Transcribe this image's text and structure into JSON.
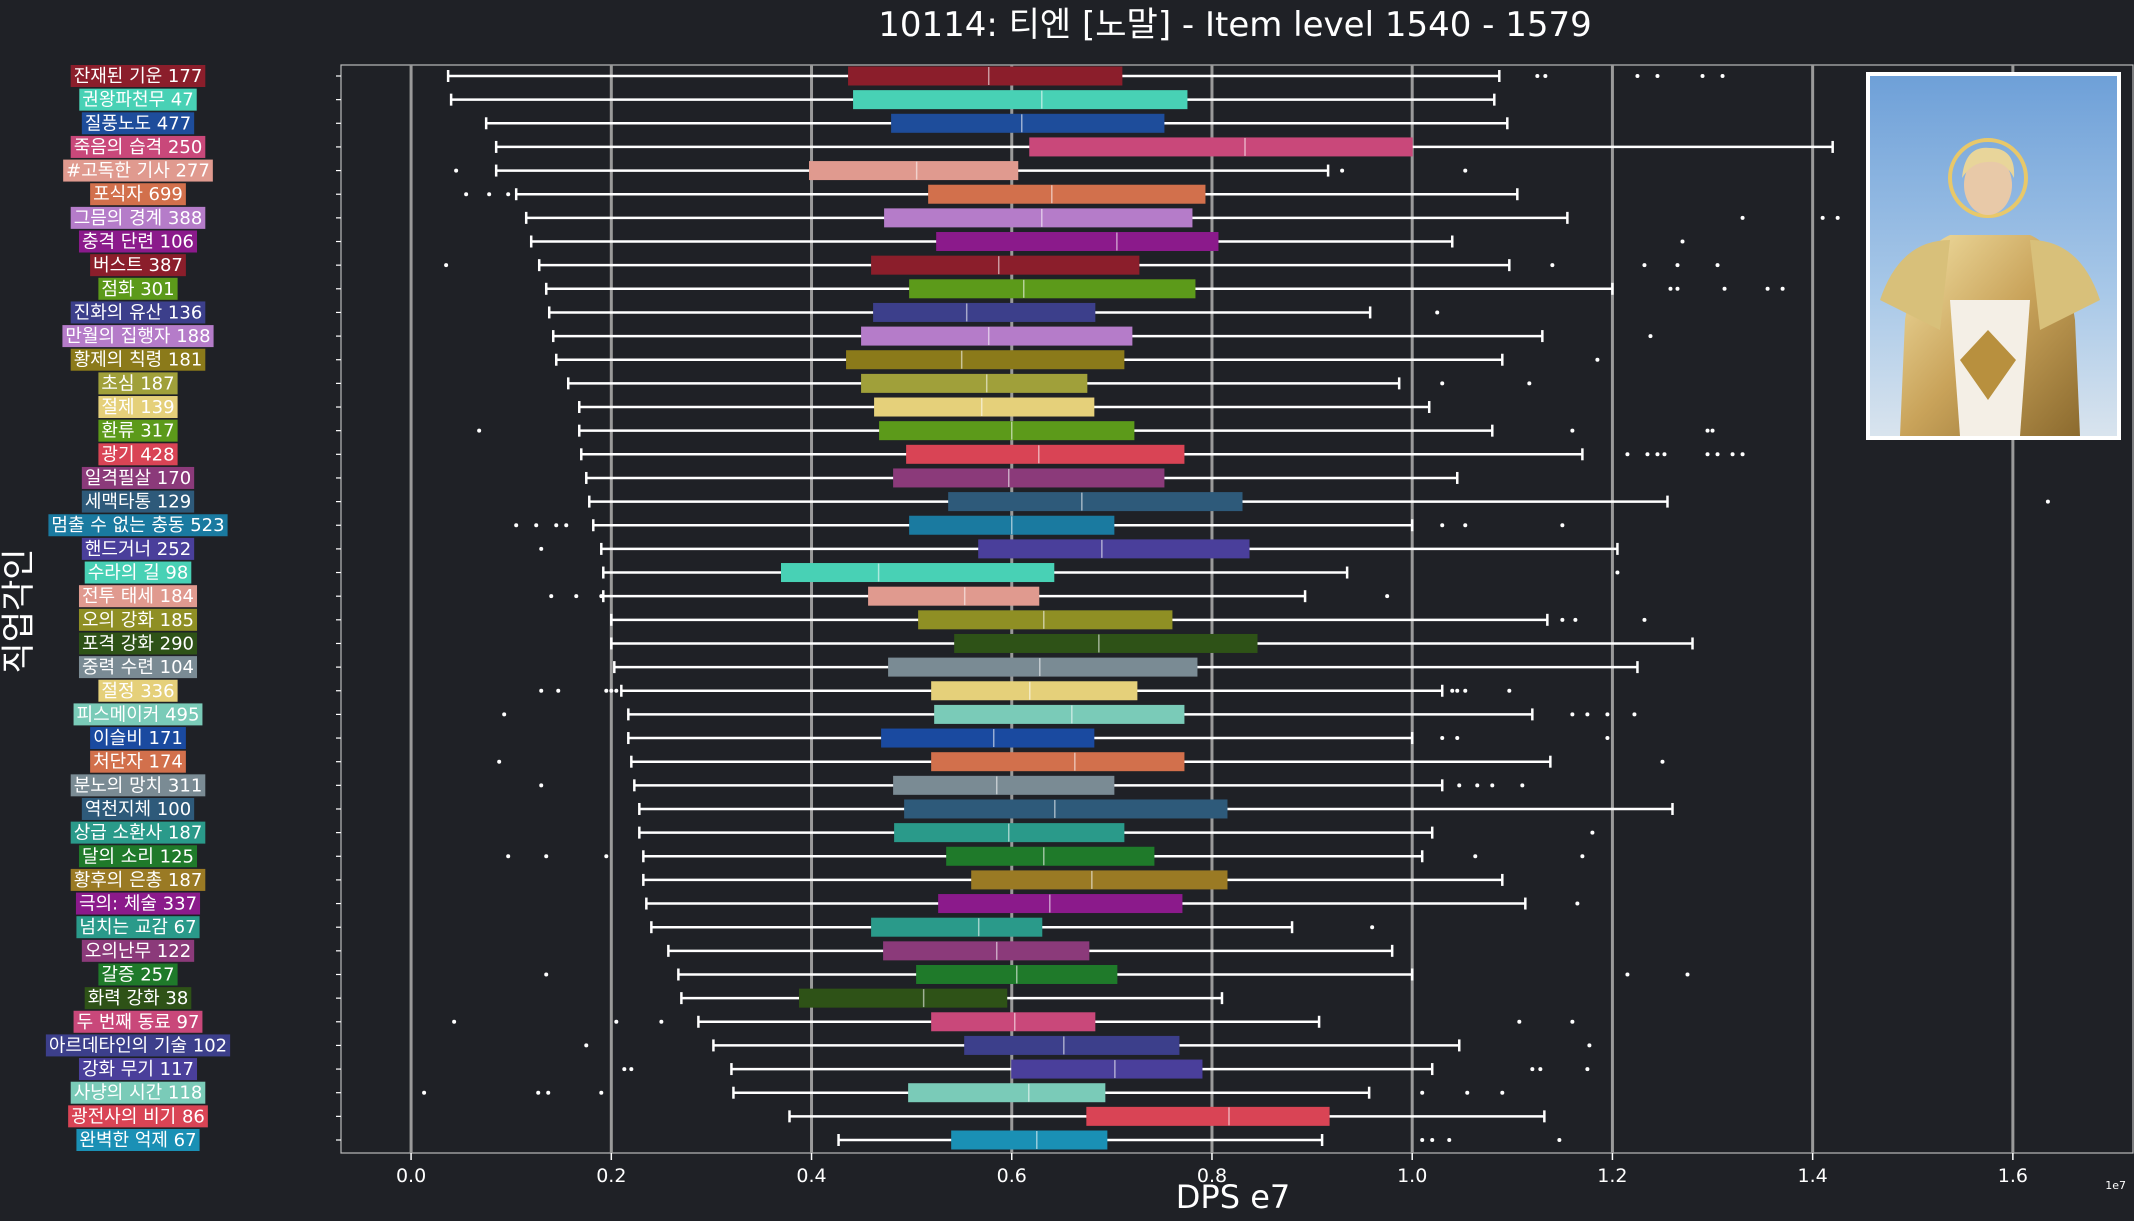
{
  "chart_data": {
    "type": "box",
    "orientation": "horizontal",
    "title": "10114: 티엔 [노말] - Item level 1540 - 1579",
    "xlabel": "DPS e7",
    "ylabel": "직업각인",
    "x_offset_text": "1e7",
    "xlim": [
      -0.07,
      1.72
    ],
    "xticks": [
      "0.0",
      "0.2",
      "0.4",
      "0.6",
      "0.8",
      "1.0",
      "1.2",
      "1.4",
      "1.6"
    ],
    "xtick_values": [
      0.0,
      0.2,
      0.4,
      0.6,
      0.8,
      1.0,
      1.2,
      1.4,
      1.6
    ],
    "grid": "vertical",
    "series": [
      {
        "label": "잔재된 기운 177",
        "color": "#8b1e2b",
        "stats": [
          0.037,
          0.437,
          0.577,
          0.71,
          1.087
        ],
        "outliers": [
          1.125,
          1.133,
          1.225,
          1.245,
          1.29,
          1.31
        ]
      },
      {
        "label": "권왕파천무 47",
        "color": "#48d1b5",
        "stats": [
          0.04,
          0.442,
          0.63,
          0.775,
          1.082
        ],
        "outliers": []
      },
      {
        "label": "질풍노도 477",
        "color": "#1e4d9b",
        "stats": [
          0.075,
          0.48,
          0.61,
          0.752,
          1.095
        ],
        "outliers": []
      },
      {
        "label": "죽음의 습격 250",
        "color": "#c9487a",
        "stats": [
          0.085,
          0.618,
          0.833,
          1.0,
          1.42
        ],
        "outliers": []
      },
      {
        "label": "#고독한 기사 277",
        "color": "#e09a8f",
        "stats": [
          0.085,
          0.398,
          0.505,
          0.606,
          0.916
        ],
        "outliers": [
          0.045,
          0.93,
          1.053
        ]
      },
      {
        "label": "포식자 699",
        "color": "#d2704c",
        "stats": [
          0.105,
          0.517,
          0.64,
          0.793,
          1.105
        ],
        "outliers": [
          0.055,
          0.078,
          0.097
        ]
      },
      {
        "label": "그믐의 경계 388",
        "color": "#b57cc9",
        "stats": [
          0.115,
          0.473,
          0.63,
          0.78,
          1.155
        ],
        "outliers": [
          1.33,
          1.41,
          1.425
        ]
      },
      {
        "label": "충격 단련 106",
        "color": "#8b1a8b",
        "stats": [
          0.12,
          0.525,
          0.705,
          0.806,
          1.04
        ],
        "outliers": [
          1.27
        ]
      },
      {
        "label": "버스트 387",
        "color": "#8b1e2b",
        "stats": [
          0.128,
          0.46,
          0.587,
          0.727,
          1.097
        ],
        "outliers": [
          0.035,
          1.14,
          1.232,
          1.265,
          1.305
        ]
      },
      {
        "label": "점화 301",
        "color": "#5c9a1a",
        "stats": [
          0.135,
          0.498,
          0.612,
          0.783,
          1.2
        ],
        "outliers": [
          1.258,
          1.265,
          1.312,
          1.355,
          1.37
        ]
      },
      {
        "label": "진화의 유산 136",
        "color": "#3c3f8b",
        "stats": [
          0.138,
          0.462,
          0.555,
          0.683,
          0.958
        ],
        "outliers": [
          1.025
        ]
      },
      {
        "label": "만월의 집행자 188",
        "color": "#b57cc9",
        "stats": [
          0.142,
          0.45,
          0.577,
          0.72,
          1.13
        ],
        "outliers": [
          1.238
        ]
      },
      {
        "label": "황제의 칙령 181",
        "color": "#8b7a1a",
        "stats": [
          0.145,
          0.435,
          0.55,
          0.712,
          1.09
        ],
        "outliers": [
          1.185
        ]
      },
      {
        "label": "초심 187",
        "color": "#a0a03a",
        "stats": [
          0.157,
          0.45,
          0.575,
          0.675,
          0.987
        ],
        "outliers": [
          1.03,
          1.117
        ]
      },
      {
        "label": "절제 139",
        "color": "#e5d07a",
        "stats": [
          0.168,
          0.463,
          0.57,
          0.682,
          1.017
        ],
        "outliers": []
      },
      {
        "label": "환류 317",
        "color": "#5c9a1a",
        "stats": [
          0.168,
          0.468,
          0.6,
          0.722,
          1.08
        ],
        "outliers": [
          0.068,
          1.16,
          1.295,
          1.3
        ]
      },
      {
        "label": "광기 428",
        "color": "#d94455",
        "stats": [
          0.17,
          0.495,
          0.627,
          0.772,
          1.17
        ],
        "outliers": [
          1.215,
          1.235,
          1.245,
          1.252,
          1.295,
          1.305,
          1.32,
          1.33
        ]
      },
      {
        "label": "일격필살 170",
        "color": "#8b3a7a",
        "stats": [
          0.175,
          0.482,
          0.597,
          0.752,
          1.045
        ],
        "outliers": []
      },
      {
        "label": "세맥타통 129",
        "color": "#2e5a7a",
        "stats": [
          0.178,
          0.537,
          0.67,
          0.83,
          1.255
        ],
        "outliers": [
          1.635
        ]
      },
      {
        "label": "멈출 수 없는 충동 523",
        "color": "#1a7aa0",
        "stats": [
          0.182,
          0.498,
          0.6,
          0.702,
          1.0
        ],
        "outliers": [
          0.105,
          0.125,
          0.145,
          0.155,
          1.03,
          1.053,
          1.15
        ]
      },
      {
        "label": "핸드거너 252",
        "color": "#4a3f9b",
        "stats": [
          0.19,
          0.567,
          0.69,
          0.837,
          1.205
        ],
        "outliers": [
          0.13
        ]
      },
      {
        "label": "수라의 길 98",
        "color": "#48d1b5",
        "stats": [
          0.192,
          0.37,
          0.467,
          0.642,
          0.935
        ],
        "outliers": [
          1.205
        ]
      },
      {
        "label": "전투 태세 184",
        "color": "#e09a8f",
        "stats": [
          0.192,
          0.457,
          0.553,
          0.627,
          0.893
        ],
        "outliers": [
          0.14,
          0.165,
          0.19,
          0.975
        ]
      },
      {
        "label": "오의 강화 185",
        "color": "#8f8f24",
        "stats": [
          0.2,
          0.507,
          0.632,
          0.76,
          1.135
        ],
        "outliers": [
          1.15,
          1.163,
          1.232
        ]
      },
      {
        "label": "포격 강화 290",
        "color": "#2e5217",
        "stats": [
          0.2,
          0.543,
          0.687,
          0.845,
          1.28
        ],
        "outliers": []
      },
      {
        "label": "중력 수련 104",
        "color": "#7a8b94",
        "stats": [
          0.203,
          0.477,
          0.628,
          0.785,
          1.225
        ],
        "outliers": []
      },
      {
        "label": "절정 336",
        "color": "#e5d07a",
        "stats": [
          0.21,
          0.52,
          0.618,
          0.725,
          1.03
        ],
        "outliers": [
          0.13,
          0.147,
          0.195,
          0.2,
          0.205,
          1.04,
          1.045,
          1.053,
          1.097
        ]
      },
      {
        "label": "피스메이커 495",
        "color": "#7acbb8",
        "stats": [
          0.217,
          0.523,
          0.66,
          0.772,
          1.12
        ],
        "outliers": [
          0.093,
          1.16,
          1.175,
          1.195,
          1.222
        ]
      },
      {
        "label": "이슬비 171",
        "color": "#1a4aa0",
        "stats": [
          0.217,
          0.47,
          0.582,
          0.682,
          1.0
        ],
        "outliers": [
          1.03,
          1.045,
          1.195
        ]
      },
      {
        "label": "처단자 174",
        "color": "#d2704c",
        "stats": [
          0.22,
          0.52,
          0.663,
          0.772,
          1.138
        ],
        "outliers": [
          0.088,
          1.25
        ]
      },
      {
        "label": "분노의 망치 311",
        "color": "#7a8b94",
        "stats": [
          0.223,
          0.482,
          0.585,
          0.702,
          1.03
        ],
        "outliers": [
          0.13,
          1.047,
          1.065,
          1.08,
          1.11
        ]
      },
      {
        "label": "역천지체 100",
        "color": "#2e5a7a",
        "stats": [
          0.228,
          0.493,
          0.643,
          0.815,
          1.26
        ],
        "outliers": []
      },
      {
        "label": "상급 소환사 187",
        "color": "#2a9a8a",
        "stats": [
          0.228,
          0.483,
          0.597,
          0.712,
          1.02
        ],
        "outliers": [
          1.18
        ]
      },
      {
        "label": "달의 소리 125",
        "color": "#1f7a2a",
        "stats": [
          0.232,
          0.535,
          0.632,
          0.742,
          1.01
        ],
        "outliers": [
          0.097,
          0.135,
          0.195,
          1.063,
          1.17
        ]
      },
      {
        "label": "황후의 은총 187",
        "color": "#9a7a24",
        "stats": [
          0.232,
          0.56,
          0.68,
          0.815,
          1.09
        ],
        "outliers": []
      },
      {
        "label": "극의: 체술 337",
        "color": "#8b1a8b",
        "stats": [
          0.235,
          0.527,
          0.638,
          0.77,
          1.113
        ],
        "outliers": [
          1.165
        ]
      },
      {
        "label": "넘치는 교감 67",
        "color": "#2a9a8a",
        "stats": [
          0.24,
          0.46,
          0.567,
          0.63,
          0.88
        ],
        "outliers": [
          0.96
        ]
      },
      {
        "label": "오의난무 122",
        "color": "#8b3a7a",
        "stats": [
          0.257,
          0.472,
          0.585,
          0.677,
          0.98
        ],
        "outliers": []
      },
      {
        "label": "갈증 257",
        "color": "#1f7a2a",
        "stats": [
          0.267,
          0.505,
          0.605,
          0.705,
          1.0
        ],
        "outliers": [
          0.135,
          1.215,
          1.275
        ]
      },
      {
        "label": "화력 강화 38",
        "color": "#2e5217",
        "stats": [
          0.27,
          0.388,
          0.512,
          0.595,
          0.81
        ],
        "outliers": []
      },
      {
        "label": "두 번째 동료 97",
        "color": "#c9487a",
        "stats": [
          0.287,
          0.52,
          0.603,
          0.683,
          0.907
        ],
        "outliers": [
          0.043,
          0.205,
          0.25,
          1.107,
          1.16
        ]
      },
      {
        "label": "아르데타인의 기술 102",
        "color": "#3c3f8b",
        "stats": [
          0.302,
          0.553,
          0.652,
          0.767,
          1.047
        ],
        "outliers": [
          0.175,
          1.177
        ]
      },
      {
        "label": "강화 무기 117",
        "color": "#4a3f9b",
        "stats": [
          0.32,
          0.6,
          0.703,
          0.79,
          1.02
        ],
        "outliers": [
          0.213,
          0.22,
          1.12,
          1.128,
          1.175
        ]
      },
      {
        "label": "사냥의 시간 118",
        "color": "#7acbb8",
        "stats": [
          0.322,
          0.497,
          0.617,
          0.693,
          0.957
        ],
        "outliers": [
          0.013,
          0.127,
          0.137,
          0.19,
          1.01,
          1.055,
          1.09
        ]
      },
      {
        "label": "광전사의 비기 86",
        "color": "#d94455",
        "stats": [
          0.378,
          0.675,
          0.817,
          0.917,
          1.132
        ],
        "outliers": []
      },
      {
        "label": "완벽한 억제 67",
        "color": "#1a90b5",
        "stats": [
          0.427,
          0.54,
          0.625,
          0.695,
          0.91
        ],
        "outliers": [
          1.01,
          1.02,
          1.037,
          1.147
        ]
      }
    ]
  }
}
